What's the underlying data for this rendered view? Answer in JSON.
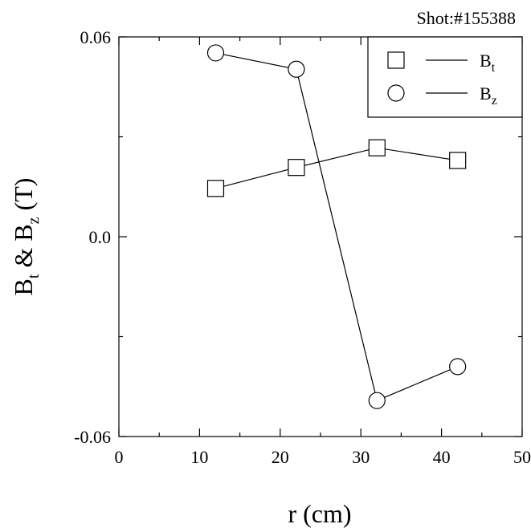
{
  "annotation": "Shot:#155388",
  "chart_data": {
    "type": "scatter",
    "title": "",
    "xlabel": "r (cm)",
    "ylabel": {
      "b1": "B",
      "s1": "t",
      "mid": " & ",
      "b2": "B",
      "s2": "z",
      "end": " (T)"
    },
    "xlim": [
      0,
      50
    ],
    "ylim": [
      -0.06,
      0.06
    ],
    "xticks": [
      0,
      10,
      20,
      30,
      40,
      50
    ],
    "xtick_labels": [
      "0",
      "10",
      "20",
      "30",
      "40",
      "50"
    ],
    "yticks": [
      -0.06,
      0.0,
      0.06
    ],
    "ytick_labels": [
      "-0.06",
      "0.0",
      "0.06"
    ],
    "grid": false,
    "legend_position": "top-right",
    "series": [
      {
        "legend_base": "B",
        "legend_sub": "t",
        "marker": "square",
        "connected": true,
        "x": [
          12,
          22,
          32,
          42
        ],
        "y": [
          0.0145,
          0.0208,
          0.0267,
          0.0229
        ]
      },
      {
        "legend_base": "B",
        "legend_sub": "z",
        "marker": "circle",
        "connected": true,
        "x": [
          12,
          22,
          32,
          42
        ],
        "y": [
          0.0552,
          0.0503,
          -0.0492,
          -0.039
        ]
      }
    ]
  }
}
